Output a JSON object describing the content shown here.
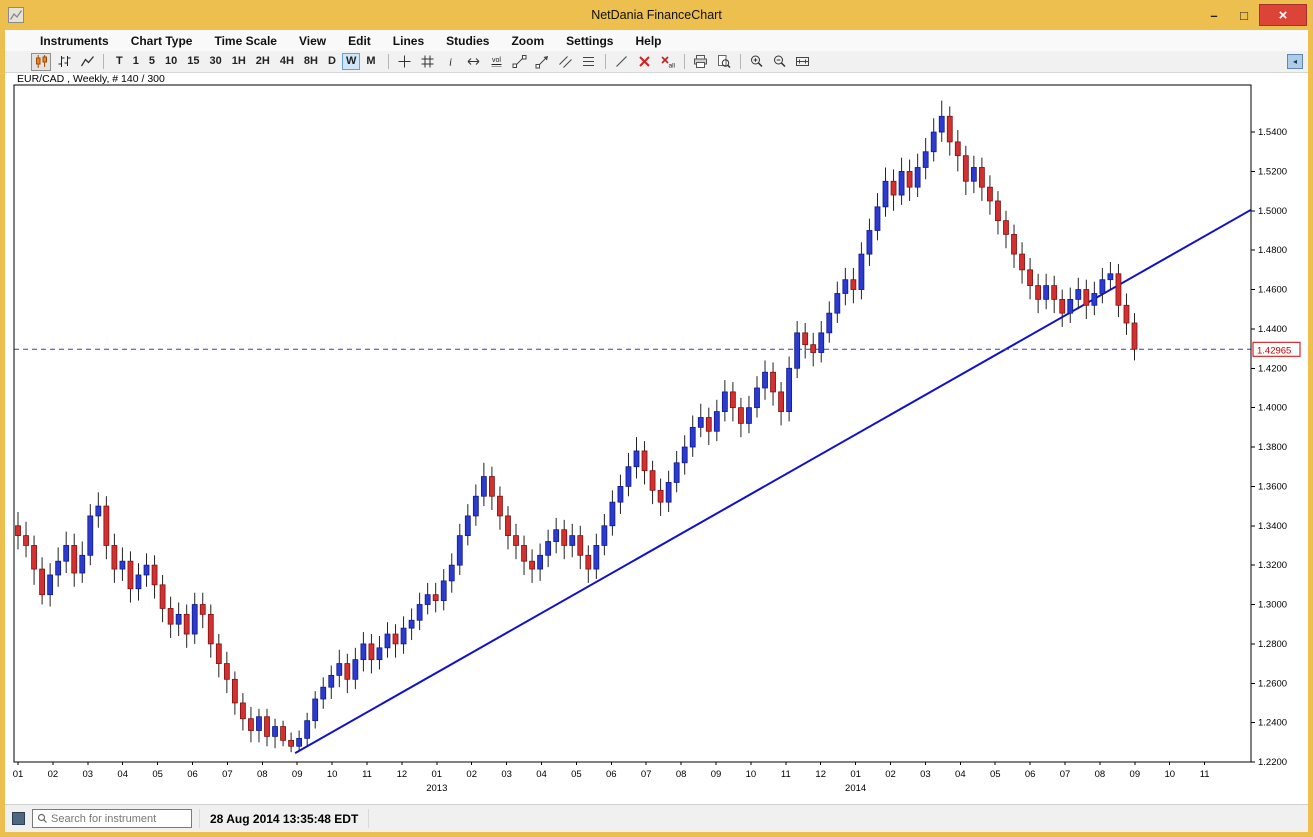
{
  "window": {
    "title": "NetDania FinanceChart",
    "controls": {
      "minimize": "–",
      "maximize": "□",
      "close": "×"
    }
  },
  "menu": {
    "items": [
      "Instruments",
      "Chart Type",
      "Time Scale",
      "View",
      "Edit",
      "Lines",
      "Studies",
      "Zoom",
      "Settings",
      "Help"
    ]
  },
  "toolbar": {
    "chart_type_selected": "candlestick",
    "timeframes": [
      {
        "label": "T"
      },
      {
        "label": "1"
      },
      {
        "label": "5"
      },
      {
        "label": "10"
      },
      {
        "label": "15"
      },
      {
        "label": "30"
      },
      {
        "label": "1H"
      },
      {
        "label": "2H"
      },
      {
        "label": "4H"
      },
      {
        "label": "8H"
      },
      {
        "label": "D"
      },
      {
        "label": "W",
        "selected": true
      },
      {
        "label": "M"
      }
    ],
    "tools": [
      "candlestick-chart",
      "ohlc-bar-chart",
      "line-chart",
      "crosshair",
      "grid",
      "info",
      "horizontal-resize",
      "volume",
      "trend-line",
      "ray-line",
      "parallel-channel",
      "fibonacci",
      "segment-line",
      "delete-line",
      "delete-all-lines",
      "print",
      "print-preview",
      "zoom-in",
      "zoom-out",
      "zoom-interval",
      "expand-panel"
    ]
  },
  "icons": {
    "expand_panel": "◂"
  },
  "status_bar": {
    "search_placeholder": "Search for instrument",
    "timestamp": "28 Aug 2014 13:35:48 EDT"
  },
  "chart_data": {
    "type": "candlestick",
    "instrument": "EUR/CAD",
    "timeframe": "Weekly",
    "bar_counter": "# 140 / 300",
    "instrument_label": "EUR/CAD , Weekly, # 140 / 300",
    "up_color": "#2b3bd0",
    "down_color": "#d33030",
    "up_stroke": "#111a8c",
    "down_stroke": "#801212",
    "wick_color": "#222222",
    "y_axis": {
      "top_price": 1.5639,
      "bottom_price": 1.22,
      "tick_labels": [
        "1.5400",
        "1.5200",
        "1.5000",
        "1.4800",
        "1.4600",
        "1.4400",
        "1.4200",
        "1.4000",
        "1.3800",
        "1.3600",
        "1.3400",
        "1.3200",
        "1.3000",
        "1.2800",
        "1.2600",
        "1.2400",
        "1.2200"
      ]
    },
    "x_axis": {
      "weeks_visible": 154,
      "weeks_per_month": 4.345,
      "month_labels": [
        "01",
        "02",
        "03",
        "04",
        "05",
        "06",
        "07",
        "08",
        "09",
        "10",
        "11",
        "12",
        "01",
        "02",
        "03",
        "04",
        "05",
        "06",
        "07",
        "08",
        "09",
        "10",
        "11",
        "12",
        "01",
        "02",
        "03",
        "04",
        "05",
        "06",
        "07",
        "08",
        "09",
        "10",
        "11"
      ],
      "year_labels": [
        {
          "label": "2013",
          "month_index": 12
        },
        {
          "label": "2014",
          "month_index": 24
        }
      ]
    },
    "trend_line": {
      "from": {
        "week": 34.5,
        "price": 1.2245
      },
      "to": {
        "week": 153.5,
        "price": 1.5005
      },
      "color": "#1111cc",
      "width": 2
    },
    "price_line": {
      "price": 1.42965,
      "label": "1.42965",
      "color": "#3a3ad0"
    },
    "ohlc_columns": [
      "open",
      "high",
      "low",
      "close"
    ],
    "candles": [
      [
        1.34,
        1.347,
        1.328,
        1.335
      ],
      [
        1.335,
        1.342,
        1.324,
        1.33
      ],
      [
        1.33,
        1.335,
        1.31,
        1.318
      ],
      [
        1.318,
        1.324,
        1.3,
        1.305
      ],
      [
        1.305,
        1.321,
        1.299,
        1.315
      ],
      [
        1.315,
        1.329,
        1.309,
        1.322
      ],
      [
        1.322,
        1.337,
        1.316,
        1.33
      ],
      [
        1.33,
        1.336,
        1.309,
        1.316
      ],
      [
        1.316,
        1.332,
        1.311,
        1.325
      ],
      [
        1.325,
        1.351,
        1.32,
        1.345
      ],
      [
        1.345,
        1.357,
        1.339,
        1.35
      ],
      [
        1.35,
        1.355,
        1.323,
        1.33
      ],
      [
        1.33,
        1.336,
        1.311,
        1.318
      ],
      [
        1.318,
        1.329,
        1.312,
        1.322
      ],
      [
        1.322,
        1.327,
        1.301,
        1.308
      ],
      [
        1.308,
        1.321,
        1.302,
        1.315
      ],
      [
        1.315,
        1.326,
        1.309,
        1.32
      ],
      [
        1.32,
        1.325,
        1.303,
        1.31
      ],
      [
        1.31,
        1.315,
        1.291,
        1.298
      ],
      [
        1.298,
        1.304,
        1.283,
        1.29
      ],
      [
        1.29,
        1.301,
        1.284,
        1.295
      ],
      [
        1.295,
        1.3,
        1.278,
        1.285
      ],
      [
        1.285,
        1.306,
        1.28,
        1.3
      ],
      [
        1.3,
        1.306,
        1.288,
        1.295
      ],
      [
        1.295,
        1.3,
        1.273,
        1.28
      ],
      [
        1.28,
        1.285,
        1.263,
        1.27
      ],
      [
        1.27,
        1.276,
        1.255,
        1.262
      ],
      [
        1.262,
        1.266,
        1.244,
        1.25
      ],
      [
        1.25,
        1.255,
        1.236,
        1.242
      ],
      [
        1.242,
        1.248,
        1.23,
        1.236
      ],
      [
        1.236,
        1.247,
        1.23,
        1.243
      ],
      [
        1.243,
        1.247,
        1.228,
        1.233
      ],
      [
        1.233,
        1.242,
        1.227,
        1.238
      ],
      [
        1.238,
        1.241,
        1.228,
        1.231
      ],
      [
        1.231,
        1.235,
        1.225,
        1.228
      ],
      [
        1.228,
        1.236,
        1.226,
        1.232
      ],
      [
        1.232,
        1.245,
        1.228,
        1.241
      ],
      [
        1.241,
        1.256,
        1.237,
        1.252
      ],
      [
        1.252,
        1.263,
        1.247,
        1.258
      ],
      [
        1.258,
        1.269,
        1.252,
        1.264
      ],
      [
        1.264,
        1.277,
        1.258,
        1.27
      ],
      [
        1.27,
        1.275,
        1.255,
        1.262
      ],
      [
        1.262,
        1.278,
        1.257,
        1.272
      ],
      [
        1.272,
        1.286,
        1.266,
        1.28
      ],
      [
        1.28,
        1.285,
        1.265,
        1.272
      ],
      [
        1.272,
        1.284,
        1.267,
        1.278
      ],
      [
        1.278,
        1.291,
        1.273,
        1.285
      ],
      [
        1.285,
        1.29,
        1.273,
        1.28
      ],
      [
        1.28,
        1.294,
        1.275,
        1.288
      ],
      [
        1.288,
        1.298,
        1.282,
        1.292
      ],
      [
        1.292,
        1.306,
        1.287,
        1.3
      ],
      [
        1.3,
        1.311,
        1.295,
        1.305
      ],
      [
        1.305,
        1.311,
        1.296,
        1.302
      ],
      [
        1.302,
        1.318,
        1.297,
        1.312
      ],
      [
        1.312,
        1.326,
        1.306,
        1.32
      ],
      [
        1.32,
        1.341,
        1.315,
        1.335
      ],
      [
        1.335,
        1.351,
        1.33,
        1.345
      ],
      [
        1.345,
        1.361,
        1.34,
        1.355
      ],
      [
        1.355,
        1.372,
        1.35,
        1.365
      ],
      [
        1.365,
        1.37,
        1.348,
        1.355
      ],
      [
        1.355,
        1.36,
        1.338,
        1.345
      ],
      [
        1.345,
        1.35,
        1.328,
        1.335
      ],
      [
        1.335,
        1.341,
        1.323,
        1.33
      ],
      [
        1.33,
        1.335,
        1.315,
        1.322
      ],
      [
        1.322,
        1.328,
        1.311,
        1.318
      ],
      [
        1.318,
        1.331,
        1.312,
        1.325
      ],
      [
        1.325,
        1.338,
        1.319,
        1.332
      ],
      [
        1.332,
        1.344,
        1.326,
        1.338
      ],
      [
        1.338,
        1.343,
        1.323,
        1.33
      ],
      [
        1.33,
        1.341,
        1.324,
        1.335
      ],
      [
        1.335,
        1.34,
        1.318,
        1.325
      ],
      [
        1.325,
        1.33,
        1.311,
        1.318
      ],
      [
        1.318,
        1.336,
        1.313,
        1.33
      ],
      [
        1.33,
        1.346,
        1.325,
        1.34
      ],
      [
        1.34,
        1.358,
        1.335,
        1.352
      ],
      [
        1.352,
        1.366,
        1.346,
        1.36
      ],
      [
        1.36,
        1.377,
        1.355,
        1.37
      ],
      [
        1.37,
        1.385,
        1.364,
        1.378
      ],
      [
        1.378,
        1.383,
        1.361,
        1.368
      ],
      [
        1.368,
        1.373,
        1.351,
        1.358
      ],
      [
        1.358,
        1.364,
        1.345,
        1.352
      ],
      [
        1.352,
        1.368,
        1.347,
        1.362
      ],
      [
        1.362,
        1.378,
        1.357,
        1.372
      ],
      [
        1.372,
        1.386,
        1.366,
        1.38
      ],
      [
        1.38,
        1.396,
        1.375,
        1.39
      ],
      [
        1.39,
        1.402,
        1.385,
        1.395
      ],
      [
        1.395,
        1.4,
        1.381,
        1.388
      ],
      [
        1.388,
        1.404,
        1.383,
        1.398
      ],
      [
        1.398,
        1.414,
        1.393,
        1.408
      ],
      [
        1.408,
        1.413,
        1.393,
        1.4
      ],
      [
        1.4,
        1.405,
        1.385,
        1.392
      ],
      [
        1.392,
        1.406,
        1.387,
        1.4
      ],
      [
        1.4,
        1.416,
        1.395,
        1.41
      ],
      [
        1.41,
        1.424,
        1.404,
        1.418
      ],
      [
        1.418,
        1.423,
        1.401,
        1.408
      ],
      [
        1.408,
        1.413,
        1.391,
        1.398
      ],
      [
        1.398,
        1.426,
        1.393,
        1.42
      ],
      [
        1.42,
        1.444,
        1.415,
        1.438
      ],
      [
        1.438,
        1.443,
        1.425,
        1.432
      ],
      [
        1.432,
        1.438,
        1.421,
        1.428
      ],
      [
        1.428,
        1.444,
        1.423,
        1.438
      ],
      [
        1.438,
        1.454,
        1.433,
        1.448
      ],
      [
        1.448,
        1.464,
        1.443,
        1.458
      ],
      [
        1.458,
        1.471,
        1.452,
        1.465
      ],
      [
        1.465,
        1.471,
        1.453,
        1.46
      ],
      [
        1.46,
        1.484,
        1.455,
        1.478
      ],
      [
        1.478,
        1.496,
        1.472,
        1.49
      ],
      [
        1.49,
        1.509,
        1.485,
        1.502
      ],
      [
        1.502,
        1.522,
        1.497,
        1.515
      ],
      [
        1.515,
        1.521,
        1.5,
        1.508
      ],
      [
        1.508,
        1.527,
        1.503,
        1.52
      ],
      [
        1.52,
        1.526,
        1.505,
        1.512
      ],
      [
        1.512,
        1.529,
        1.507,
        1.522
      ],
      [
        1.522,
        1.537,
        1.516,
        1.53
      ],
      [
        1.53,
        1.547,
        1.525,
        1.54
      ],
      [
        1.54,
        1.556,
        1.535,
        1.548
      ],
      [
        1.548,
        1.553,
        1.528,
        1.535
      ],
      [
        1.535,
        1.541,
        1.52,
        1.528
      ],
      [
        1.528,
        1.533,
        1.508,
        1.515
      ],
      [
        1.515,
        1.528,
        1.509,
        1.522
      ],
      [
        1.522,
        1.527,
        1.505,
        1.512
      ],
      [
        1.512,
        1.518,
        1.498,
        1.505
      ],
      [
        1.505,
        1.51,
        1.488,
        1.495
      ],
      [
        1.495,
        1.5,
        1.481,
        1.488
      ],
      [
        1.488,
        1.493,
        1.471,
        1.478
      ],
      [
        1.478,
        1.484,
        1.463,
        1.47
      ],
      [
        1.47,
        1.476,
        1.455,
        1.462
      ],
      [
        1.462,
        1.468,
        1.448,
        1.455
      ],
      [
        1.455,
        1.468,
        1.45,
        1.462
      ],
      [
        1.462,
        1.467,
        1.448,
        1.455
      ],
      [
        1.455,
        1.46,
        1.441,
        1.448
      ],
      [
        1.448,
        1.461,
        1.443,
        1.455
      ],
      [
        1.455,
        1.466,
        1.45,
        1.46
      ],
      [
        1.46,
        1.465,
        1.445,
        1.452
      ],
      [
        1.452,
        1.464,
        1.447,
        1.458
      ],
      [
        1.458,
        1.471,
        1.453,
        1.465
      ],
      [
        1.465,
        1.474,
        1.46,
        1.468
      ],
      [
        1.468,
        1.473,
        1.446,
        1.452
      ],
      [
        1.452,
        1.458,
        1.437,
        1.443
      ],
      [
        1.443,
        1.448,
        1.424,
        1.4297
      ]
    ]
  }
}
